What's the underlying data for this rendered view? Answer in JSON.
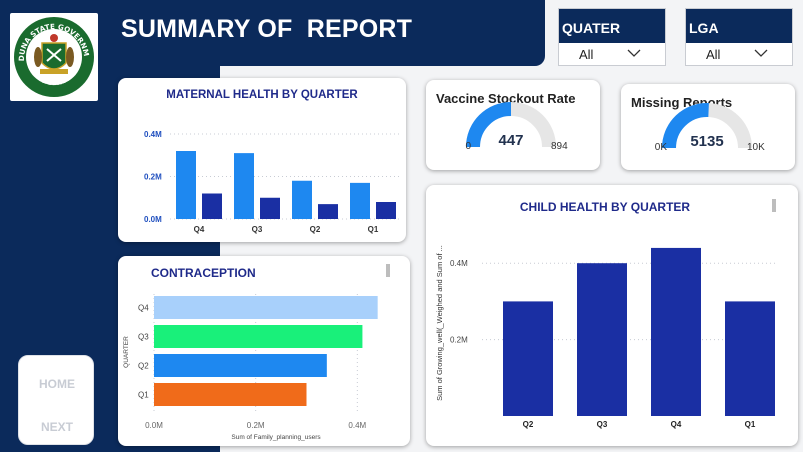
{
  "header": {
    "title": "SUMMARY OF  REPORT",
    "logo_text_top": "KADUNA STATE GOVERNMENT",
    "logo_text_bottom": "NIGERIA"
  },
  "slicers": [
    {
      "label": "QUATER",
      "value": "All"
    },
    {
      "label": "LGA",
      "value": "All"
    }
  ],
  "kpis": {
    "vaccine": {
      "title": "Vaccine Stockout Rate",
      "value": 447,
      "min": "0",
      "max": "894",
      "value_label": "447",
      "range_max": 894
    },
    "missing": {
      "title": "Missing Reports",
      "value": 5135,
      "min": "0K",
      "max": "10K",
      "value_label": "5135",
      "range_max": 10000
    }
  },
  "nav": {
    "home": "HOME",
    "next": "NEXT"
  },
  "colors": {
    "navy": "#0b2a5b",
    "bright_blue": "#1e88f0",
    "dark_blue": "#1a2fa3",
    "title_blue": "#1f2a8a"
  },
  "chart_data": [
    {
      "type": "bar",
      "title": "MATERNAL HEALTH BY QUARTER",
      "categories": [
        "Q4",
        "Q3",
        "Q2",
        "Q1"
      ],
      "series": [
        {
          "values": [
            0.32,
            0.31,
            0.18,
            0.17
          ],
          "color": "#1e88f0"
        },
        {
          "values": [
            0.12,
            0.1,
            0.07,
            0.08
          ],
          "color": "#1a2fa3"
        }
      ],
      "yticks": [
        "0.0M",
        "0.2M",
        "0.4M"
      ],
      "ylim": [
        0,
        0.4
      ],
      "grid": true
    },
    {
      "type": "bar",
      "orientation": "horizontal",
      "title": "CONTRACEPTION",
      "categories": [
        "Q4",
        "Q3",
        "Q2",
        "Q1"
      ],
      "values": [
        0.44,
        0.41,
        0.34,
        0.3
      ],
      "colors": [
        "#a8d0fb",
        "#19f07a",
        "#1e88f0",
        "#f06b1a"
      ],
      "xlabel": "Sum of Family_planning_users",
      "ylabel": "QUARTER",
      "xticks": [
        "0.0M",
        "0.2M",
        "0.4M"
      ],
      "xlim": [
        0,
        0.48
      ],
      "grid": true
    },
    {
      "type": "bar",
      "title": "CHILD HEALTH BY QUARTER",
      "categories": [
        "Q2",
        "Q3",
        "Q4",
        "Q1"
      ],
      "values": [
        0.3,
        0.4,
        0.44,
        0.3
      ],
      "color": "#1a2fa3",
      "ylabel": "Sum of Growing_well(_Weighed and Sum of ...",
      "yticks": [
        "0.2M",
        "0.4M"
      ],
      "ylim": [
        0,
        0.5
      ],
      "grid": true
    }
  ]
}
